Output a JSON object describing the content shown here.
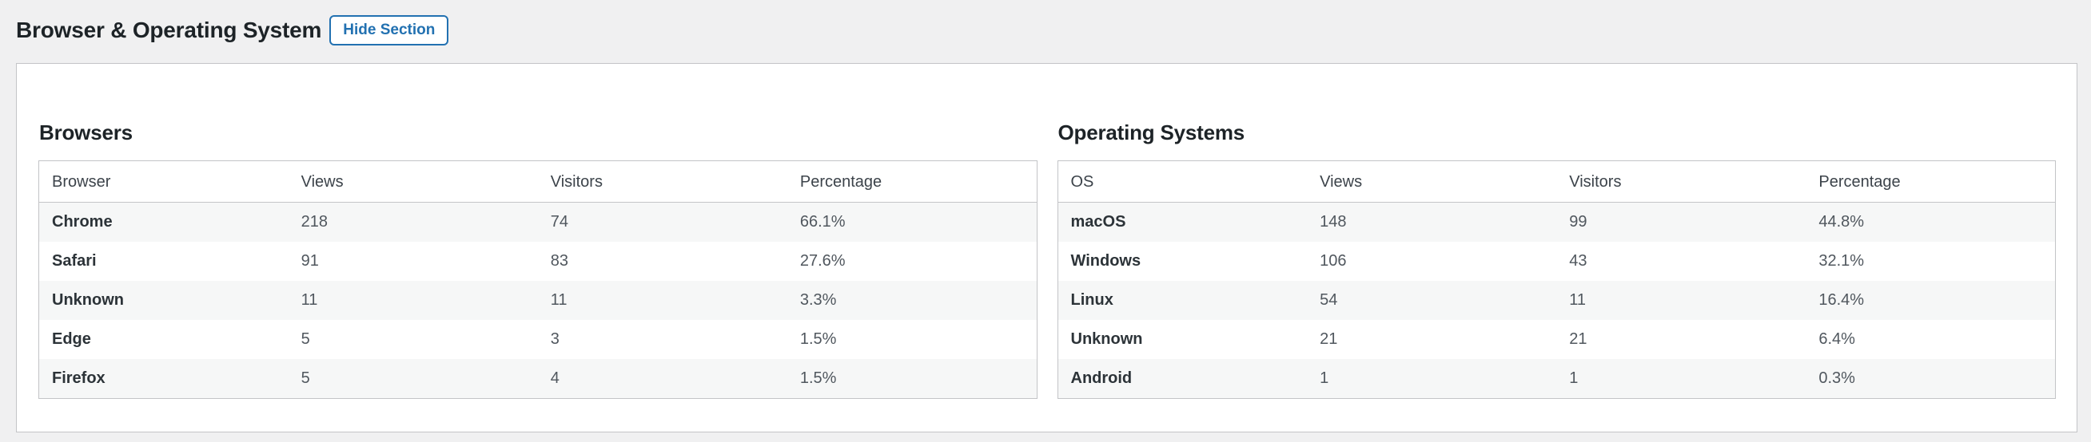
{
  "header": {
    "title": "Browser & Operating System",
    "hide_button_label": "Hide Section"
  },
  "colors": {
    "page_background": "#f0f0f1",
    "card_background": "#ffffff",
    "border": "#c3c4c7",
    "row_alt_background": "#f6f7f7",
    "heading_text": "#1d2327",
    "cell_text": "#50575e",
    "accent_blue": "#2271b1"
  },
  "browsers": {
    "title": "Browsers",
    "columns": [
      "Browser",
      "Views",
      "Visitors",
      "Percentage"
    ],
    "rows": [
      [
        "Chrome",
        "218",
        "74",
        "66.1%"
      ],
      [
        "Safari",
        "91",
        "83",
        "27.6%"
      ],
      [
        "Unknown",
        "11",
        "11",
        "3.3%"
      ],
      [
        "Edge",
        "5",
        "3",
        "1.5%"
      ],
      [
        "Firefox",
        "5",
        "4",
        "1.5%"
      ]
    ]
  },
  "operating_systems": {
    "title": "Operating Systems",
    "columns": [
      "OS",
      "Views",
      "Visitors",
      "Percentage"
    ],
    "rows": [
      [
        "macOS",
        "148",
        "99",
        "44.8%"
      ],
      [
        "Windows",
        "106",
        "43",
        "32.1%"
      ],
      [
        "Linux",
        "54",
        "11",
        "16.4%"
      ],
      [
        "Unknown",
        "21",
        "21",
        "6.4%"
      ],
      [
        "Android",
        "1",
        "1",
        "0.3%"
      ]
    ]
  }
}
